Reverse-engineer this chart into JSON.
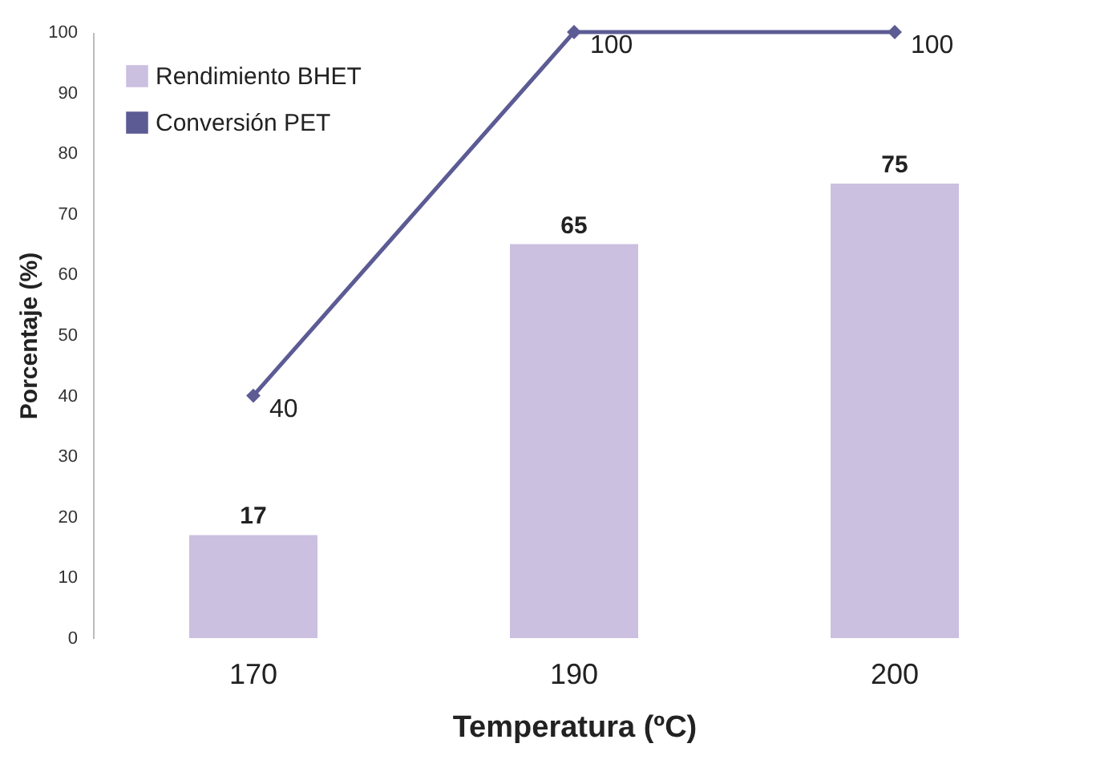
{
  "chart_data": {
    "type": "bar",
    "xlabel": "Temperatura (ºC)",
    "ylabel": "Porcentaje (%)",
    "categories": [
      "170",
      "190",
      "200"
    ],
    "series": [
      {
        "name": "Rendimiento BHET",
        "color": "#cbc0e0",
        "values": [
          17,
          65,
          75
        ]
      },
      {
        "name": "Conversión PET",
        "type": "line",
        "color": "#5c5b94",
        "values": [
          40,
          100,
          100
        ]
      }
    ],
    "ylim": [
      0,
      100
    ],
    "yticks": [
      0,
      10,
      20,
      30,
      40,
      50,
      60,
      70,
      80,
      90,
      100
    ],
    "data_labels": true,
    "grid": false,
    "legend": "top left",
    "marker": "diamond",
    "line_style": "solid"
  }
}
